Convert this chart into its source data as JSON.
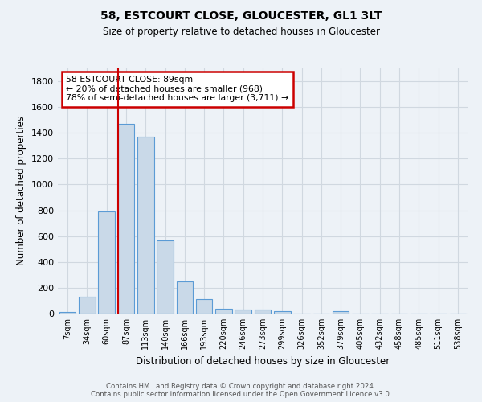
{
  "title": "58, ESTCOURT CLOSE, GLOUCESTER, GL1 3LT",
  "subtitle": "Size of property relative to detached houses in Gloucester",
  "xlabel": "Distribution of detached houses by size in Gloucester",
  "ylabel": "Number of detached properties",
  "footer_line1": "Contains HM Land Registry data © Crown copyright and database right 2024.",
  "footer_line2": "Contains public sector information licensed under the Open Government Licence v3.0.",
  "bar_color": "#c9d9e8",
  "bar_edgecolor": "#5b9bd5",
  "grid_color": "#d0d8e0",
  "background_color": "#edf2f7",
  "annotation_line1": "58 ESTCOURT CLOSE: 89sqm",
  "annotation_line2": "← 20% of detached houses are smaller (968)",
  "annotation_line3": "78% of semi-detached houses are larger (3,711) →",
  "annotation_box_color": "#ffffff",
  "annotation_box_edgecolor": "#cc0000",
  "vline_color": "#cc0000",
  "vline_x_index": 3,
  "categories": [
    "7sqm",
    "34sqm",
    "60sqm",
    "87sqm",
    "113sqm",
    "140sqm",
    "166sqm",
    "193sqm",
    "220sqm",
    "246sqm",
    "273sqm",
    "299sqm",
    "326sqm",
    "352sqm",
    "379sqm",
    "405sqm",
    "432sqm",
    "458sqm",
    "485sqm",
    "511sqm",
    "538sqm"
  ],
  "values": [
    15,
    130,
    790,
    1470,
    1370,
    565,
    250,
    110,
    35,
    30,
    30,
    20,
    0,
    0,
    20,
    0,
    0,
    0,
    0,
    0,
    0
  ],
  "ylim": [
    0,
    1900
  ],
  "yticks": [
    0,
    200,
    400,
    600,
    800,
    1000,
    1200,
    1400,
    1600,
    1800
  ]
}
